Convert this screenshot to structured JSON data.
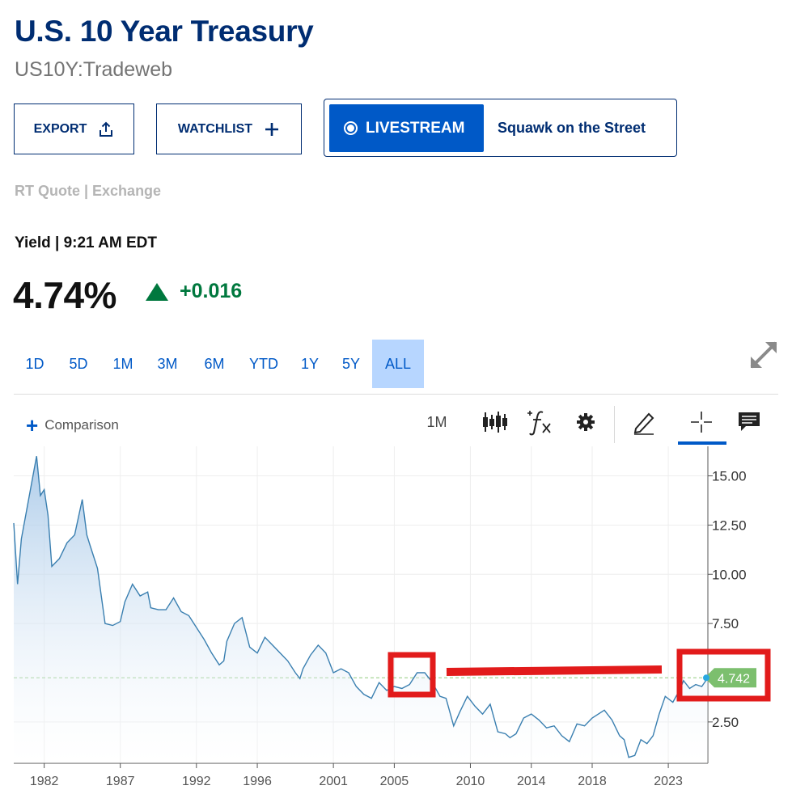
{
  "header": {
    "title": "U.S. 10 Year Treasury",
    "subtitle": "US10Y:Tradeweb"
  },
  "actions": {
    "export_label": "EXPORT",
    "watchlist_label": "WATCHLIST",
    "livestream_label": "LIVESTREAM",
    "livestream_show": "Squawk on the Street"
  },
  "quote": {
    "rt_label": "RT Quote | Exchange",
    "yield_label": "Yield | 9:21 AM EDT",
    "price": "4.74%",
    "change": "+0.016"
  },
  "ranges": [
    "1D",
    "5D",
    "1M",
    "3M",
    "6M",
    "YTD",
    "1Y",
    "5Y",
    "ALL"
  ],
  "active_range": "ALL",
  "toolbar": {
    "comparison_label": "Comparison",
    "interval_label": "1M"
  },
  "colors": {
    "title": "#002d72",
    "accent": "#0059c7",
    "positive": "#00783e",
    "line": "#3a7fb0",
    "current_badge": "#7cbf6e",
    "annotation": "#e21b1b"
  },
  "icons": [
    "share-icon",
    "plus-icon",
    "expand-icon",
    "candlestick-icon",
    "function-icon",
    "gear-icon",
    "pencil-icon",
    "crosshair-icon",
    "comment-icon"
  ],
  "chart_data": {
    "type": "area",
    "title": "",
    "xlabel": "",
    "ylabel": "",
    "x_ticks": [
      "1982",
      "1987",
      "1992",
      "1996",
      "2001",
      "2005",
      "2010",
      "2014",
      "2018",
      "2023"
    ],
    "y_ticks": [
      "15.00",
      "12.50",
      "10.00",
      "7.50",
      "2.50"
    ],
    "ylim": [
      0.4,
      16.5
    ],
    "xlim": [
      1980.0,
      2025.6
    ],
    "grid": true,
    "current_value": 4.742,
    "current_label": "4.742",
    "series": [
      {
        "x": [
          1980.0,
          1980.25,
          1980.5,
          1981.0,
          1981.5,
          1981.75,
          1982.0,
          1982.25,
          1982.5,
          1983.0,
          1983.5,
          1984.0,
          1984.5,
          1984.8,
          1985.0,
          1985.5,
          1986.0,
          1986.5,
          1987.0,
          1987.3,
          1987.8,
          1988.3,
          1988.8,
          1989.0,
          1989.5,
          1990.0,
          1990.5,
          1991.0,
          1991.5,
          1992.0,
          1992.5,
          1993.0,
          1993.5,
          1993.8,
          1994.0,
          1994.5,
          1995.0,
          1995.5,
          1996.0,
          1996.5,
          1997.0,
          1997.5,
          1998.0,
          1998.5,
          1998.8,
          1999.0,
          1999.5,
          2000.0,
          2000.5,
          2001.0,
          2001.5,
          2002.0,
          2002.5,
          2003.0,
          2003.5,
          2004.0,
          2004.5,
          2005.0,
          2005.5,
          2006.0,
          2006.5,
          2007.0,
          2007.5,
          2008.0,
          2008.4,
          2008.9,
          2009.3,
          2009.8,
          2010.3,
          2010.8,
          2011.3,
          2011.8,
          2012.3,
          2012.6,
          2013.0,
          2013.5,
          2014.0,
          2014.5,
          2015.0,
          2015.5,
          2016.0,
          2016.5,
          2017.0,
          2017.5,
          2018.0,
          2018.8,
          2019.3,
          2019.8,
          2020.1,
          2020.4,
          2020.8,
          2021.2,
          2021.6,
          2022.0,
          2022.4,
          2022.8,
          2023.3,
          2023.8,
          2024.0,
          2024.4,
          2024.8,
          2025.2,
          2025.6
        ],
        "values": [
          12.6,
          9.5,
          11.8,
          13.9,
          16.0,
          14.0,
          14.3,
          13.0,
          10.4,
          10.8,
          11.6,
          12.0,
          13.8,
          12.0,
          11.5,
          10.3,
          7.5,
          7.4,
          7.6,
          8.6,
          9.5,
          8.9,
          9.1,
          8.3,
          8.2,
          8.2,
          8.8,
          8.1,
          7.9,
          7.3,
          6.7,
          6.0,
          5.4,
          5.6,
          6.6,
          7.5,
          7.8,
          6.3,
          6.0,
          6.8,
          6.4,
          6.0,
          5.6,
          5.0,
          4.7,
          5.2,
          5.9,
          6.4,
          6.0,
          5.0,
          5.2,
          5.0,
          4.3,
          3.9,
          3.7,
          4.5,
          4.1,
          4.3,
          4.2,
          4.4,
          5.0,
          5.0,
          4.5,
          3.8,
          3.7,
          2.3,
          3.0,
          3.8,
          3.3,
          2.9,
          3.4,
          2.0,
          1.9,
          1.7,
          1.9,
          2.7,
          2.9,
          2.6,
          2.2,
          2.3,
          1.8,
          1.5,
          2.4,
          2.3,
          2.7,
          3.1,
          2.6,
          1.8,
          1.6,
          0.7,
          0.8,
          1.6,
          1.4,
          1.8,
          2.9,
          3.8,
          3.5,
          4.2,
          4.6,
          4.2,
          4.4,
          4.3,
          4.742
        ]
      }
    ]
  }
}
